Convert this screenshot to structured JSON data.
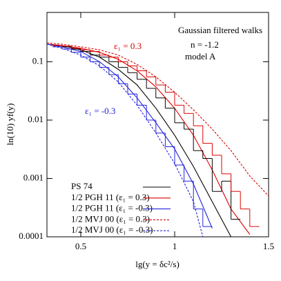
{
  "chart_data": {
    "type": "line",
    "xlabel": "lg(y = δc²/s)",
    "ylabel": "ln(10) yf(y)",
    "annotations": [
      {
        "text": "Gaussian filtered walks",
        "color": "#000000"
      },
      {
        "text": "n = -1.2",
        "color": "#000000"
      },
      {
        "text": "model A",
        "color": "#000000"
      },
      {
        "text": "ε₁ = 0.3",
        "color": "#dd0000"
      },
      {
        "text": "ε₁ = -0.3",
        "color": "#2222dd"
      }
    ],
    "xlim": [
      0.32,
      1.5
    ],
    "xticks": [
      0.5,
      1,
      1.5
    ],
    "ylim": [
      0.0001,
      0.7
    ],
    "yticks": [
      0.0001,
      0.001,
      0.01,
      0.1
    ],
    "log_y": true,
    "series": [
      {
        "name": "PS 74",
        "color": "#000000",
        "dash": false,
        "x": [
          0.32,
          0.4,
          0.5,
          0.6,
          0.7,
          0.8,
          0.9,
          1.0,
          1.1,
          1.2,
          1.3
        ],
        "values": [
          0.2,
          0.19,
          0.16,
          0.12,
          0.074,
          0.04,
          0.016,
          0.0055,
          0.0016,
          0.0004,
          0.0001
        ]
      },
      {
        "name": "1/2 PGH 11 (ε₁ = 0.3)",
        "color": "#dd0000",
        "dash": false,
        "x": [
          0.32,
          0.4,
          0.5,
          0.6,
          0.7,
          0.8,
          0.9,
          1.0,
          1.1,
          1.2,
          1.3,
          1.4
        ],
        "values": [
          0.2,
          0.19,
          0.17,
          0.145,
          0.11,
          0.07,
          0.037,
          0.016,
          0.0055,
          0.0014,
          0.0003,
          0.00011
        ]
      },
      {
        "name": "1/2 PGH 11 (ε₁ = -0.3)",
        "color": "#2222dd",
        "dash": false,
        "x": [
          0.32,
          0.4,
          0.5,
          0.6,
          0.7,
          0.8,
          0.9,
          1.0,
          1.1,
          1.2
        ],
        "values": [
          0.2,
          0.18,
          0.15,
          0.1,
          0.055,
          0.024,
          0.009,
          0.0032,
          0.0008,
          0.00014
        ]
      },
      {
        "name": "1/2 MVJ 00 (ε₁ = 0.3)",
        "color": "#dd0000",
        "dash": true,
        "x": [
          0.32,
          0.4,
          0.5,
          0.6,
          0.7,
          0.8,
          0.9,
          1.0,
          1.1,
          1.2,
          1.3,
          1.4,
          1.5
        ],
        "values": [
          0.21,
          0.2,
          0.18,
          0.16,
          0.13,
          0.09,
          0.055,
          0.03,
          0.015,
          0.007,
          0.003,
          0.0011,
          0.0005
        ]
      },
      {
        "name": "1/2 MVJ 00 (ε₁ = -0.3)",
        "color": "#2222dd",
        "dash": true,
        "x": [
          0.32,
          0.4,
          0.5,
          0.6,
          0.7,
          0.8,
          0.9,
          1.0,
          1.1,
          1.15
        ],
        "values": [
          0.2,
          0.17,
          0.13,
          0.085,
          0.045,
          0.018,
          0.006,
          0.0018,
          0.0004,
          0.0001
        ]
      }
    ],
    "histograms": [
      {
        "color": "#000000",
        "bins": [
          0.35,
          0.4,
          0.45,
          0.5,
          0.55,
          0.6,
          0.65,
          0.7,
          0.75,
          0.8,
          0.85,
          0.9,
          0.95,
          1.0,
          1.05,
          1.1,
          1.15,
          1.2,
          1.25,
          1.3,
          1.35
        ],
        "values": [
          0.19,
          0.18,
          0.165,
          0.15,
          0.13,
          0.12,
          0.1,
          0.08,
          0.065,
          0.05,
          0.035,
          0.024,
          0.016,
          0.009,
          0.007,
          0.003,
          0.0022,
          0.0006,
          0.0009,
          0.0002
        ]
      },
      {
        "color": "#dd0000",
        "bins": [
          0.35,
          0.4,
          0.45,
          0.5,
          0.55,
          0.6,
          0.65,
          0.7,
          0.75,
          0.8,
          0.85,
          0.9,
          0.95,
          1.0,
          1.05,
          1.1,
          1.15,
          1.2,
          1.25,
          1.3,
          1.35,
          1.4,
          1.45
        ],
        "values": [
          0.19,
          0.185,
          0.17,
          0.16,
          0.15,
          0.13,
          0.12,
          0.1,
          0.085,
          0.07,
          0.055,
          0.04,
          0.03,
          0.018,
          0.013,
          0.008,
          0.004,
          0.0025,
          0.0012,
          0.0006,
          0.0003,
          0.00015
        ]
      },
      {
        "color": "#2222dd",
        "bins": [
          0.35,
          0.4,
          0.45,
          0.5,
          0.55,
          0.6,
          0.65,
          0.7,
          0.75,
          0.8,
          0.85,
          0.9,
          0.95,
          1.0,
          1.05,
          1.1,
          1.15,
          1.2
        ],
        "values": [
          0.18,
          0.165,
          0.145,
          0.12,
          0.1,
          0.08,
          0.06,
          0.042,
          0.028,
          0.018,
          0.01,
          0.006,
          0.0035,
          0.0017,
          0.0009,
          0.0003,
          0.00015
        ]
      }
    ]
  }
}
